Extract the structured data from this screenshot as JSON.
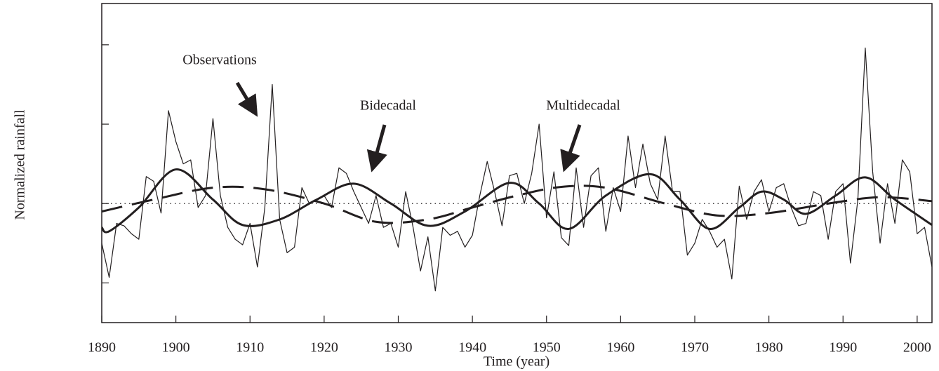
{
  "chart_data": {
    "type": "line",
    "xlabel": "Time (year)",
    "ylabel": "Normalized rainfall",
    "xlim": [
      1890,
      2002
    ],
    "xticks": [
      1890,
      1900,
      1910,
      1920,
      1930,
      1940,
      1950,
      1960,
      1970,
      1980,
      1990,
      2000
    ],
    "ylim": [
      -1.5,
      2.52
    ],
    "yticks": [
      -1,
      0,
      1,
      2
    ],
    "reference_line": 0,
    "annotations": [
      "Observations",
      "Bidecadal",
      "Multidecadal"
    ],
    "series": [
      {
        "color": "#231f20",
        "width": 1.2,
        "dash": false,
        "x": [
          1890,
          1891,
          1892,
          1893,
          1894,
          1895,
          1896,
          1897,
          1898,
          1899,
          1900,
          1901,
          1902,
          1903,
          1904,
          1905,
          1906,
          1907,
          1908,
          1909,
          1910,
          1911,
          1912,
          1913,
          1914,
          1915,
          1916,
          1917,
          1918,
          1919,
          1920,
          1921,
          1922,
          1923,
          1924,
          1925,
          1926,
          1927,
          1928,
          1929,
          1930,
          1931,
          1932,
          1933,
          1934,
          1935,
          1936,
          1937,
          1938,
          1939,
          1940,
          1941,
          1942,
          1943,
          1944,
          1945,
          1946,
          1947,
          1948,
          1949,
          1950,
          1951,
          1952,
          1953,
          1954,
          1955,
          1956,
          1957,
          1958,
          1959,
          1960,
          1961,
          1962,
          1963,
          1964,
          1965,
          1966,
          1967,
          1968,
          1969,
          1970,
          1971,
          1972,
          1973,
          1974,
          1975,
          1976,
          1977,
          1978,
          1979,
          1980,
          1981,
          1982,
          1983,
          1984,
          1985,
          1986,
          1987,
          1988,
          1989,
          1990,
          1991,
          1992,
          1993,
          1994,
          1995,
          1996,
          1997,
          1998,
          1999,
          2000,
          2001,
          2002
        ],
        "values": [
          -0.5,
          -0.93,
          -0.25,
          -0.28,
          -0.38,
          -0.45,
          0.34,
          0.28,
          -0.12,
          1.17,
          0.78,
          0.5,
          0.55,
          -0.05,
          0.1,
          1.07,
          0.1,
          -0.3,
          -0.45,
          -0.52,
          -0.25,
          -0.8,
          -0.05,
          1.5,
          -0.2,
          -0.62,
          -0.55,
          0.2,
          0.0,
          0.05,
          0.1,
          -0.05,
          0.45,
          0.38,
          0.15,
          -0.05,
          -0.25,
          0.1,
          -0.3,
          -0.25,
          -0.55,
          0.15,
          -0.3,
          -0.85,
          -0.42,
          -1.1,
          -0.3,
          -0.4,
          -0.35,
          -0.55,
          -0.4,
          0.1,
          0.53,
          0.15,
          -0.28,
          0.35,
          0.38,
          0.0,
          0.38,
          1.0,
          -0.18,
          0.4,
          -0.43,
          -0.53,
          0.45,
          -0.3,
          0.35,
          0.45,
          -0.35,
          0.2,
          -0.1,
          0.85,
          0.2,
          0.75,
          0.25,
          0.05,
          0.85,
          0.15,
          0.15,
          -0.65,
          -0.5,
          -0.2,
          -0.35,
          -0.55,
          -0.45,
          -0.95,
          0.22,
          -0.2,
          0.15,
          0.3,
          -0.1,
          0.2,
          0.25,
          -0.05,
          -0.28,
          -0.25,
          0.15,
          0.1,
          -0.45,
          0.15,
          0.25,
          -0.75,
          0.05,
          1.96,
          0.4,
          -0.5,
          0.25,
          -0.25,
          0.55,
          0.4,
          -0.38,
          -0.3,
          -0.8
        ]
      },
      {
        "color": "#231f20",
        "width": 3,
        "dash": false,
        "smooth": true,
        "x": [
          1890,
          1891,
          1895,
          1900,
          1905,
          1909,
          1914,
          1919,
          1924,
          1929,
          1934,
          1939,
          1945,
          1949,
          1953,
          1958,
          1964,
          1968,
          1972,
          1976,
          1979,
          1982,
          1985,
          1989,
          1993,
          1997,
          2002
        ],
        "values": [
          -0.3,
          -0.35,
          -0.05,
          0.43,
          0.05,
          -0.27,
          -0.2,
          0.05,
          0.25,
          0.0,
          -0.28,
          -0.1,
          0.26,
          0.0,
          -0.32,
          0.1,
          0.37,
          0.05,
          -0.32,
          -0.05,
          0.15,
          0.05,
          -0.13,
          0.1,
          0.33,
          0.05,
          -0.27
        ]
      },
      {
        "color": "#231f20",
        "width": 3,
        "dash": true,
        "smooth": true,
        "x": [
          1890,
          1897,
          1905,
          1912,
          1920,
          1927,
          1934,
          1940,
          1946,
          1952,
          1958,
          1966,
          1973,
          1980,
          1988,
          1995,
          2002
        ],
        "values": [
          -0.1,
          0.05,
          0.2,
          0.18,
          0.0,
          -0.23,
          -0.2,
          -0.05,
          0.1,
          0.21,
          0.2,
          0.0,
          -0.15,
          -0.12,
          0.0,
          0.08,
          0.03
        ]
      }
    ]
  }
}
